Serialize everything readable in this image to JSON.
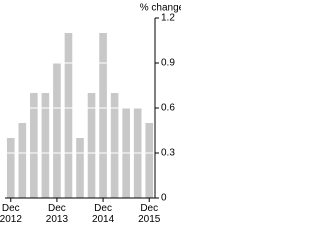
{
  "chart_data": {
    "type": "bar",
    "y_label": "% change",
    "categories": [
      "Dec 2012",
      null,
      null,
      null,
      "Dec 2013",
      null,
      null,
      null,
      "Dec 2014",
      null,
      null,
      null,
      "Dec 2015"
    ],
    "values": [
      0.4,
      0.5,
      0.7,
      0.7,
      0.9,
      1.1,
      0.4,
      0.7,
      1.1,
      0.7,
      0.6,
      0.6,
      0.5
    ],
    "color": "#c8c8c8",
    "ylim": [
      0,
      1.2
    ],
    "yticks": [
      0,
      0.3,
      0.6,
      0.9,
      1.2
    ],
    "grid": true
  }
}
